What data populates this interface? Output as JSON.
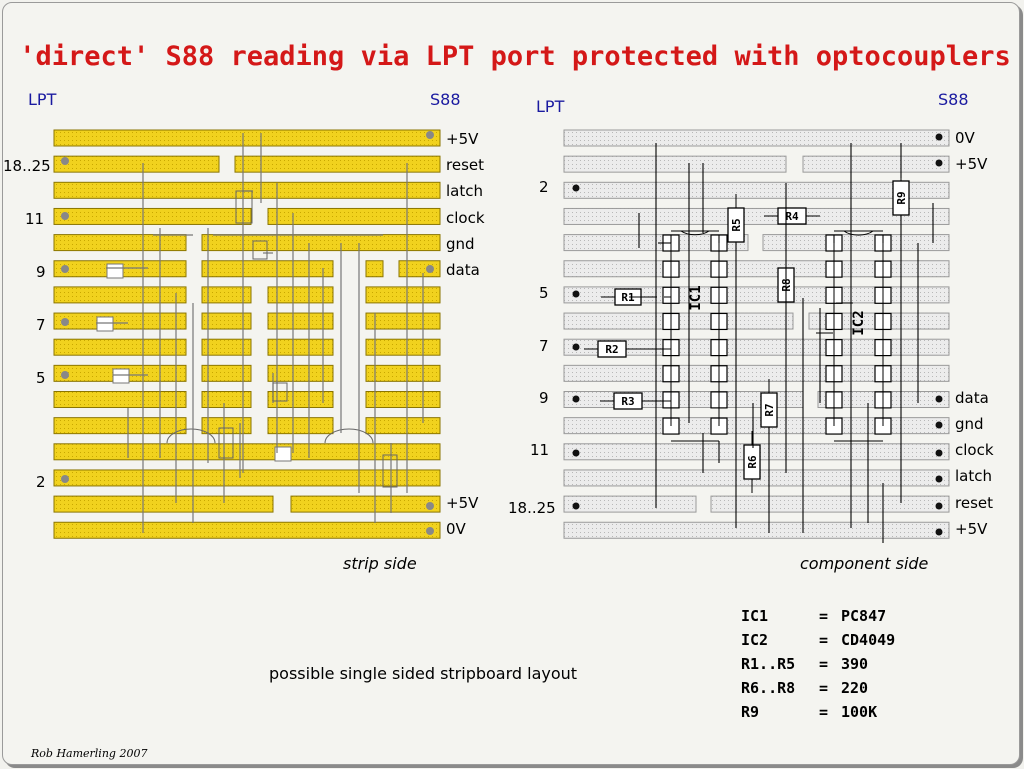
{
  "title": "'direct' S88 reading via LPT port protected with optocouplers",
  "strip_side": {
    "header_left": "LPT",
    "header_right": "S88",
    "left_pins": [
      "18..25",
      "11",
      "9",
      "7",
      "5",
      "2"
    ],
    "right_labels": [
      "+5V",
      "reset",
      "latch",
      "clock",
      "gnd",
      "data",
      "+5V",
      "0V"
    ],
    "caption": "strip side"
  },
  "component_side": {
    "header_left": "LPT",
    "header_right": "S88",
    "left_pins": [
      "2",
      "5",
      "7",
      "9",
      "11",
      "18..25"
    ],
    "right_labels": [
      "0V",
      "+5V",
      "data",
      "gnd",
      "clock",
      "latch",
      "reset",
      "+5V"
    ],
    "components": [
      "IC1",
      "IC2",
      "R1",
      "R2",
      "R3",
      "R4",
      "R5",
      "R6",
      "R7",
      "R8",
      "R9"
    ],
    "caption": "component side"
  },
  "note": "possible single sided stripboard layout",
  "parts": [
    {
      "ref": "IC1",
      "eq": "=",
      "value": "PC847"
    },
    {
      "ref": "IC2",
      "eq": "=",
      "value": "CD4049"
    },
    {
      "ref": "R1..R5",
      "eq": "=",
      "value": "390"
    },
    {
      "ref": "R6..R8",
      "eq": "=",
      "value": "220"
    },
    {
      "ref": "R9",
      "eq": "=",
      "value": "100K"
    }
  ],
  "signature": "Rob Hamerling 2007",
  "colors": {
    "strip": "#f1d21e",
    "strip_edge": "#8a7500",
    "grey_strip": "#e6e6e6",
    "title": "#d41818",
    "header": "#1a1aa0"
  }
}
